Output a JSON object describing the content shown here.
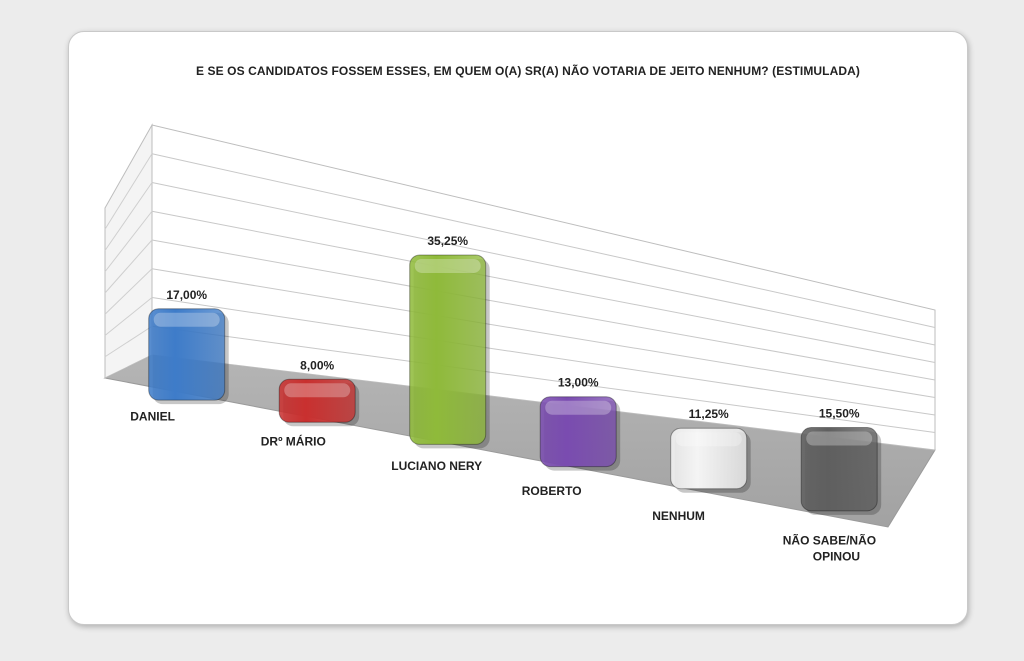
{
  "chart_data": {
    "type": "bar",
    "title": "E SE OS CANDIDATOS FOSSEM ESSES, EM QUEM O(A) SR(A) NÃO VOTARIA DE JEITO NENHUM? (ESTIMULADA)",
    "categories": [
      "DANIEL",
      "DRº MÁRIO",
      "LUCIANO NERY",
      "ROBERTO",
      "NENHUM",
      "NÃO SABE/NÃO OPINOU"
    ],
    "values": [
      17.0,
      8.0,
      35.25,
      13.0,
      11.25,
      15.5
    ],
    "value_labels": [
      "17,00%",
      "8,00%",
      "35,25%",
      "13,00%",
      "11,25%",
      "15,50%"
    ],
    "colors": [
      "#3e7cc9",
      "#c9302f",
      "#8fba3a",
      "#7a4cb0",
      "#f4f4f4",
      "#5f5f5f"
    ],
    "ylim": [
      0,
      40
    ],
    "grid": true,
    "xlabel": "",
    "ylabel": "",
    "style": "3d"
  }
}
